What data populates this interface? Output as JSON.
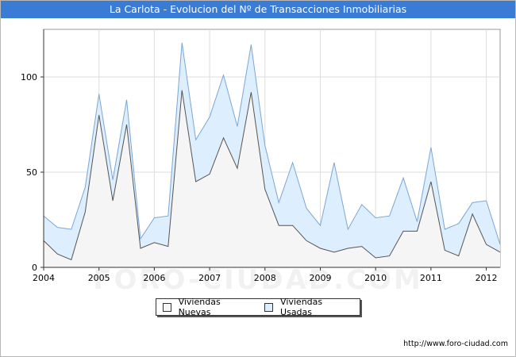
{
  "title": "La Carlota - Evolucion del Nº de Transacciones Inmobiliarias",
  "source": "http://www.foro-ciudad.com",
  "watermark": "FORO-CIUDAD.COM",
  "legend": {
    "nuevas": "Viviendas Nuevas",
    "usadas": "Viviendas Usadas"
  },
  "colors": {
    "title_bg": "#3a7bd5",
    "nuevas_fill": "#f5f5f5",
    "nuevas_line": "#555555",
    "usadas_fill": "#ddeeff",
    "usadas_line": "#7aa6d6",
    "grid": "#dddddd"
  },
  "chart_data": {
    "type": "area",
    "stacked": false,
    "x": [
      2004.0,
      2004.25,
      2004.5,
      2004.75,
      2005.0,
      2005.25,
      2005.5,
      2005.75,
      2006.0,
      2006.25,
      2006.5,
      2006.75,
      2007.0,
      2007.25,
      2007.5,
      2007.75,
      2008.0,
      2008.25,
      2008.5,
      2008.75,
      2009.0,
      2009.25,
      2009.5,
      2009.75,
      2010.0,
      2010.25,
      2010.5,
      2010.75,
      2011.0,
      2011.25,
      2011.5,
      2011.75,
      2012.0,
      2012.25
    ],
    "xlim": [
      2004.0,
      2012.25
    ],
    "xticks": [
      2004,
      2005,
      2006,
      2007,
      2008,
      2009,
      2010,
      2011,
      2012
    ],
    "ylim": [
      0,
      125
    ],
    "yticks": [
      0,
      50,
      100
    ],
    "grid": true,
    "legend_position": "bottom",
    "series": [
      {
        "name": "Viviendas Nuevas",
        "values": [
          14,
          7,
          4,
          29,
          80,
          35,
          75,
          10,
          13,
          11,
          93,
          45,
          49,
          68,
          52,
          92,
          41,
          22,
          22,
          14,
          10,
          8,
          10,
          11,
          5,
          6,
          19,
          19,
          45,
          9,
          6,
          28,
          12,
          8
        ]
      },
      {
        "name": "Viviendas Usadas",
        "values": [
          27,
          21,
          20,
          42,
          91,
          46,
          88,
          15,
          26,
          27,
          118,
          67,
          79,
          101,
          74,
          117,
          64,
          34,
          55,
          31,
          22,
          55,
          20,
          33,
          26,
          27,
          47,
          24,
          63,
          20,
          23,
          34,
          35,
          12
        ]
      }
    ]
  }
}
